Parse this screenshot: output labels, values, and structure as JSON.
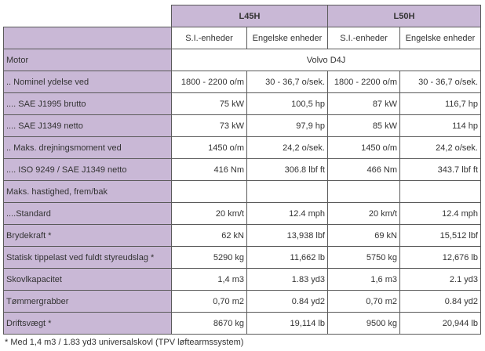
{
  "models": [
    "L45H",
    "L50H"
  ],
  "unit_headers": [
    "S.I.-enheder",
    "Engelske enheder",
    "S.I.-enheder",
    "Engelske enheder"
  ],
  "rows": [
    {
      "label": "Motor",
      "span": "Volvo D4J"
    },
    {
      "label": ".. Nominel ydelse ved",
      "cells": [
        "1800 - 2200 o/m",
        "30 - 36,7 o/sek.",
        "1800 - 2200 o/m",
        "30 - 36,7 o/sek."
      ]
    },
    {
      "label": ".... SAE J1995 brutto",
      "cells": [
        "75 kW",
        "100,5 hp",
        "87 kW",
        "116,7 hp"
      ]
    },
    {
      "label": ".... SAE J1349 netto",
      "cells": [
        "73 kW",
        "97,9 hp",
        "85 kW",
        "114 hp"
      ]
    },
    {
      "label": ".. Maks. drejningsmoment ved",
      "cells": [
        "1450 o/m",
        "24,2 o/sek.",
        "1450 o/m",
        "24,2 o/sek."
      ]
    },
    {
      "label": ".... ISO 9249 / SAE J1349 netto",
      "cells": [
        "416 Nm",
        "306.8 lbf ft",
        "466 Nm",
        "343.7 lbf ft"
      ]
    },
    {
      "label": "Maks. hastighed, frem/bak",
      "cells": [
        "",
        "",
        "",
        ""
      ]
    },
    {
      "label": "....Standard",
      "cells": [
        "20 km/t",
        "12.4 mph",
        "20 km/t",
        "12.4 mph"
      ]
    },
    {
      "label": "Brydekraft *",
      "cells": [
        "62 kN",
        "13,938 lbf",
        "69 kN",
        "15,512 lbf"
      ]
    },
    {
      "label": "Statisk tippelast ved fuldt styreudslag *",
      "cells": [
        "5290 kg",
        "11,662 lb",
        "5750 kg",
        "12,676 lb"
      ]
    },
    {
      "label": "Skovlkapacitet",
      "cells": [
        "1,4 m3",
        "1.83 yd3",
        "1,6 m3",
        "2.1 yd3"
      ]
    },
    {
      "label": "Tømmergrabber",
      "cells": [
        "0,70 m2",
        "0.84 yd2",
        "0,70 m2",
        "0.84 yd2"
      ]
    },
    {
      "label": "Driftsvægt *",
      "cells": [
        "8670 kg",
        "19,114 lb",
        "9500 kg",
        "20,944 lb"
      ]
    }
  ],
  "footnote": "* Med 1,4 m3 / 1.83 yd3 universalskovl (TPV løftearmssystem)",
  "colors": {
    "header_fill": "#c9b8d6",
    "border": "#5a5a5a",
    "text": "#333333"
  }
}
